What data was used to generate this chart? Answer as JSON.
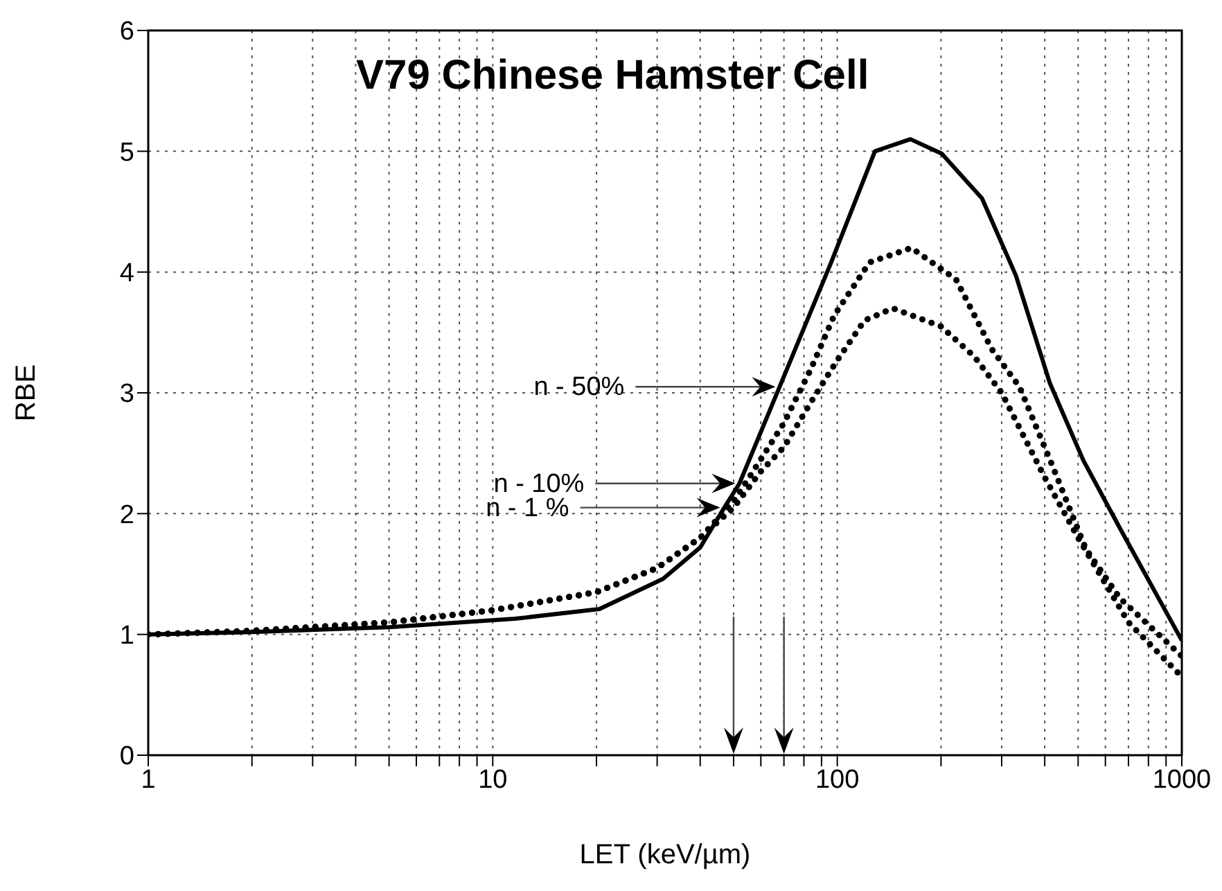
{
  "chart_data": {
    "type": "line",
    "title": "V79 Chinese Hamster Cell",
    "xlabel": "LET (keV/µm)",
    "ylabel": "RBE",
    "log": "x",
    "xlim": [
      1,
      1000
    ],
    "xticks": [
      1,
      {
        "value": 2,
        "label": null
      },
      {
        "value": 3,
        "label": null
      },
      {
        "value": 4,
        "label": null
      },
      {
        "value": 5,
        "label": null
      },
      {
        "value": 6,
        "label": null
      },
      {
        "value": 7,
        "label": null
      },
      {
        "value": 8,
        "label": null
      },
      {
        "value": 9,
        "label": null
      },
      10,
      {
        "value": 20,
        "label": null
      },
      {
        "value": 30,
        "label": null
      },
      {
        "value": 40,
        "label": null
      },
      {
        "value": 50,
        "label": null
      },
      {
        "value": 60,
        "label": null
      },
      {
        "value": 70,
        "label": null
      },
      {
        "value": 80,
        "label": null
      },
      {
        "value": 90,
        "label": null
      },
      100,
      {
        "value": 200,
        "label": null
      },
      {
        "value": 300,
        "label": null
      },
      {
        "value": 400,
        "label": null
      },
      {
        "value": 500,
        "label": null
      },
      {
        "value": 600,
        "label": null
      },
      {
        "value": 700,
        "label": null
      },
      {
        "value": 800,
        "label": null
      },
      {
        "value": 900,
        "label": null
      },
      1000
    ],
    "ylim": [
      0,
      6
    ],
    "yticks": [
      0,
      1,
      2,
      3,
      4,
      5,
      6
    ],
    "grid": true,
    "marker": "none",
    "series": [
      {
        "color": "#000000",
        "line_style": "solid",
        "x": [
          1,
          2,
          5,
          11.6,
          20.4,
          31.2,
          40,
          47,
          52,
          68,
          96,
          128.6,
          163,
          201,
          263,
          330,
          414,
          518,
          661,
          1000
        ],
        "values": [
          1.0,
          1.02,
          1.06,
          1.13,
          1.21,
          1.46,
          1.72,
          2.05,
          2.25,
          3.05,
          4.08,
          5.0,
          5.1,
          4.98,
          4.61,
          3.97,
          3.08,
          2.44,
          1.88,
          0.95
        ]
      },
      {
        "color": "#000000",
        "line_style": "dotted",
        "x": [
          1,
          2,
          5,
          10,
          20,
          30,
          40,
          50,
          60,
          70,
          83.6,
          97.9,
          124,
          164,
          221,
          281,
          338,
          422,
          526,
          661,
          1000
        ],
        "values": [
          1.0,
          1.03,
          1.1,
          1.2,
          1.35,
          1.55,
          1.8,
          2.1,
          2.45,
          2.75,
          3.19,
          3.64,
          4.08,
          4.2,
          3.94,
          3.36,
          3.05,
          2.39,
          1.71,
          1.3,
          0.82
        ]
      },
      {
        "color": "#000000",
        "line_style": "dotted",
        "x": [
          1,
          2,
          5,
          10,
          20,
          30,
          40,
          50,
          60,
          70,
          85,
          100,
          120,
          145,
          200,
          250,
          300,
          400,
          500,
          700,
          1000
        ],
        "values": [
          1.0,
          1.03,
          1.1,
          1.2,
          1.35,
          1.55,
          1.8,
          2.05,
          2.35,
          2.55,
          2.95,
          3.27,
          3.6,
          3.7,
          3.55,
          3.3,
          3.0,
          2.3,
          1.8,
          1.1,
          0.65
        ]
      }
    ],
    "annotations": [
      {
        "text": "n - 50%",
        "x": 68,
        "y": 3.05
      },
      {
        "text": "n - 10%",
        "x": 52,
        "y": 2.25
      },
      {
        "text": "n - 1 %",
        "x": 47,
        "y": 2.05
      }
    ],
    "ref_lines": [
      {
        "axis": "x",
        "value": 50
      },
      {
        "axis": "x",
        "value": 70
      }
    ]
  }
}
